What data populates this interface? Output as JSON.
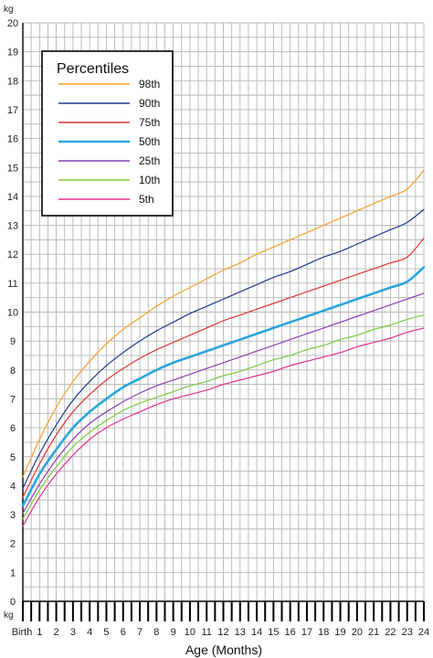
{
  "chart_data": {
    "type": "line",
    "ylabel": "kg",
    "xlabel": "Age (Months)",
    "ylim": [
      0,
      20
    ],
    "xlim": [
      0,
      24
    ],
    "x_tick_labels": [
      "Birth",
      "1",
      "2",
      "3",
      "4",
      "5",
      "6",
      "7",
      "8",
      "9",
      "10",
      "11",
      "12",
      "13",
      "14",
      "15",
      "16",
      "17",
      "18",
      "19",
      "20",
      "21",
      "22",
      "23",
      "24"
    ],
    "y_tick_labels": [
      "0",
      "1",
      "2",
      "3",
      "4",
      "5",
      "6",
      "7",
      "8",
      "9",
      "10",
      "11",
      "12",
      "13",
      "14",
      "15",
      "16",
      "17",
      "18",
      "19",
      "20"
    ],
    "grid": true,
    "legend": {
      "title": "Percentiles",
      "position": "top-left"
    },
    "x": [
      0,
      1,
      2,
      3,
      4,
      5,
      6,
      7,
      8,
      9,
      10,
      11,
      12,
      13,
      14,
      15,
      16,
      17,
      18,
      19,
      20,
      21,
      22,
      23,
      24
    ],
    "series": [
      {
        "name": "98th",
        "color": "#f5a02a",
        "line_width": 1.2,
        "values": [
          4.3,
          5.6,
          6.7,
          7.6,
          8.3,
          8.9,
          9.4,
          9.8,
          10.2,
          10.55,
          10.85,
          11.15,
          11.45,
          11.7,
          12.0,
          12.25,
          12.5,
          12.75,
          13.0,
          13.25,
          13.5,
          13.75,
          14.0,
          14.25,
          14.9
        ]
      },
      {
        "name": "90th",
        "color": "#1f3b8c",
        "line_width": 1.2,
        "values": [
          3.9,
          5.1,
          6.1,
          6.95,
          7.6,
          8.15,
          8.6,
          9.0,
          9.35,
          9.65,
          9.95,
          10.2,
          10.45,
          10.7,
          10.95,
          11.2,
          11.4,
          11.65,
          11.9,
          12.1,
          12.35,
          12.6,
          12.85,
          13.1,
          13.55
        ]
      },
      {
        "name": "75th",
        "color": "#e23434",
        "line_width": 1.2,
        "values": [
          3.6,
          4.75,
          5.75,
          6.55,
          7.15,
          7.65,
          8.05,
          8.4,
          8.7,
          8.95,
          9.2,
          9.45,
          9.7,
          9.9,
          10.1,
          10.3,
          10.5,
          10.7,
          10.9,
          11.1,
          11.3,
          11.5,
          11.7,
          11.9,
          12.55
        ]
      },
      {
        "name": "50th",
        "color": "#2aa6dd",
        "line_width": 2.6,
        "values": [
          3.3,
          4.4,
          5.25,
          6.0,
          6.55,
          7.0,
          7.4,
          7.7,
          8.0,
          8.25,
          8.45,
          8.65,
          8.85,
          9.05,
          9.25,
          9.45,
          9.65,
          9.85,
          10.05,
          10.25,
          10.45,
          10.65,
          10.85,
          11.05,
          11.55
        ]
      },
      {
        "name": "25th",
        "color": "#8a3fb0",
        "line_width": 1.2,
        "values": [
          3.05,
          4.05,
          4.9,
          5.6,
          6.15,
          6.55,
          6.9,
          7.2,
          7.45,
          7.65,
          7.85,
          8.05,
          8.25,
          8.45,
          8.65,
          8.85,
          9.05,
          9.25,
          9.45,
          9.65,
          9.85,
          10.05,
          10.25,
          10.45,
          10.65
        ]
      },
      {
        "name": "10th",
        "color": "#7cc93e",
        "line_width": 1.2,
        "values": [
          2.85,
          3.85,
          4.65,
          5.35,
          5.85,
          6.25,
          6.6,
          6.85,
          7.05,
          7.25,
          7.45,
          7.6,
          7.8,
          7.95,
          8.15,
          8.35,
          8.5,
          8.7,
          8.85,
          9.05,
          9.2,
          9.4,
          9.55,
          9.75,
          9.9
        ]
      },
      {
        "name": "5th",
        "color": "#e0338f",
        "line_width": 1.2,
        "values": [
          2.6,
          3.6,
          4.4,
          5.05,
          5.6,
          6.0,
          6.3,
          6.55,
          6.8,
          7.0,
          7.15,
          7.3,
          7.5,
          7.65,
          7.8,
          7.95,
          8.15,
          8.3,
          8.45,
          8.6,
          8.8,
          8.95,
          9.1,
          9.3,
          9.45
        ]
      }
    ]
  }
}
